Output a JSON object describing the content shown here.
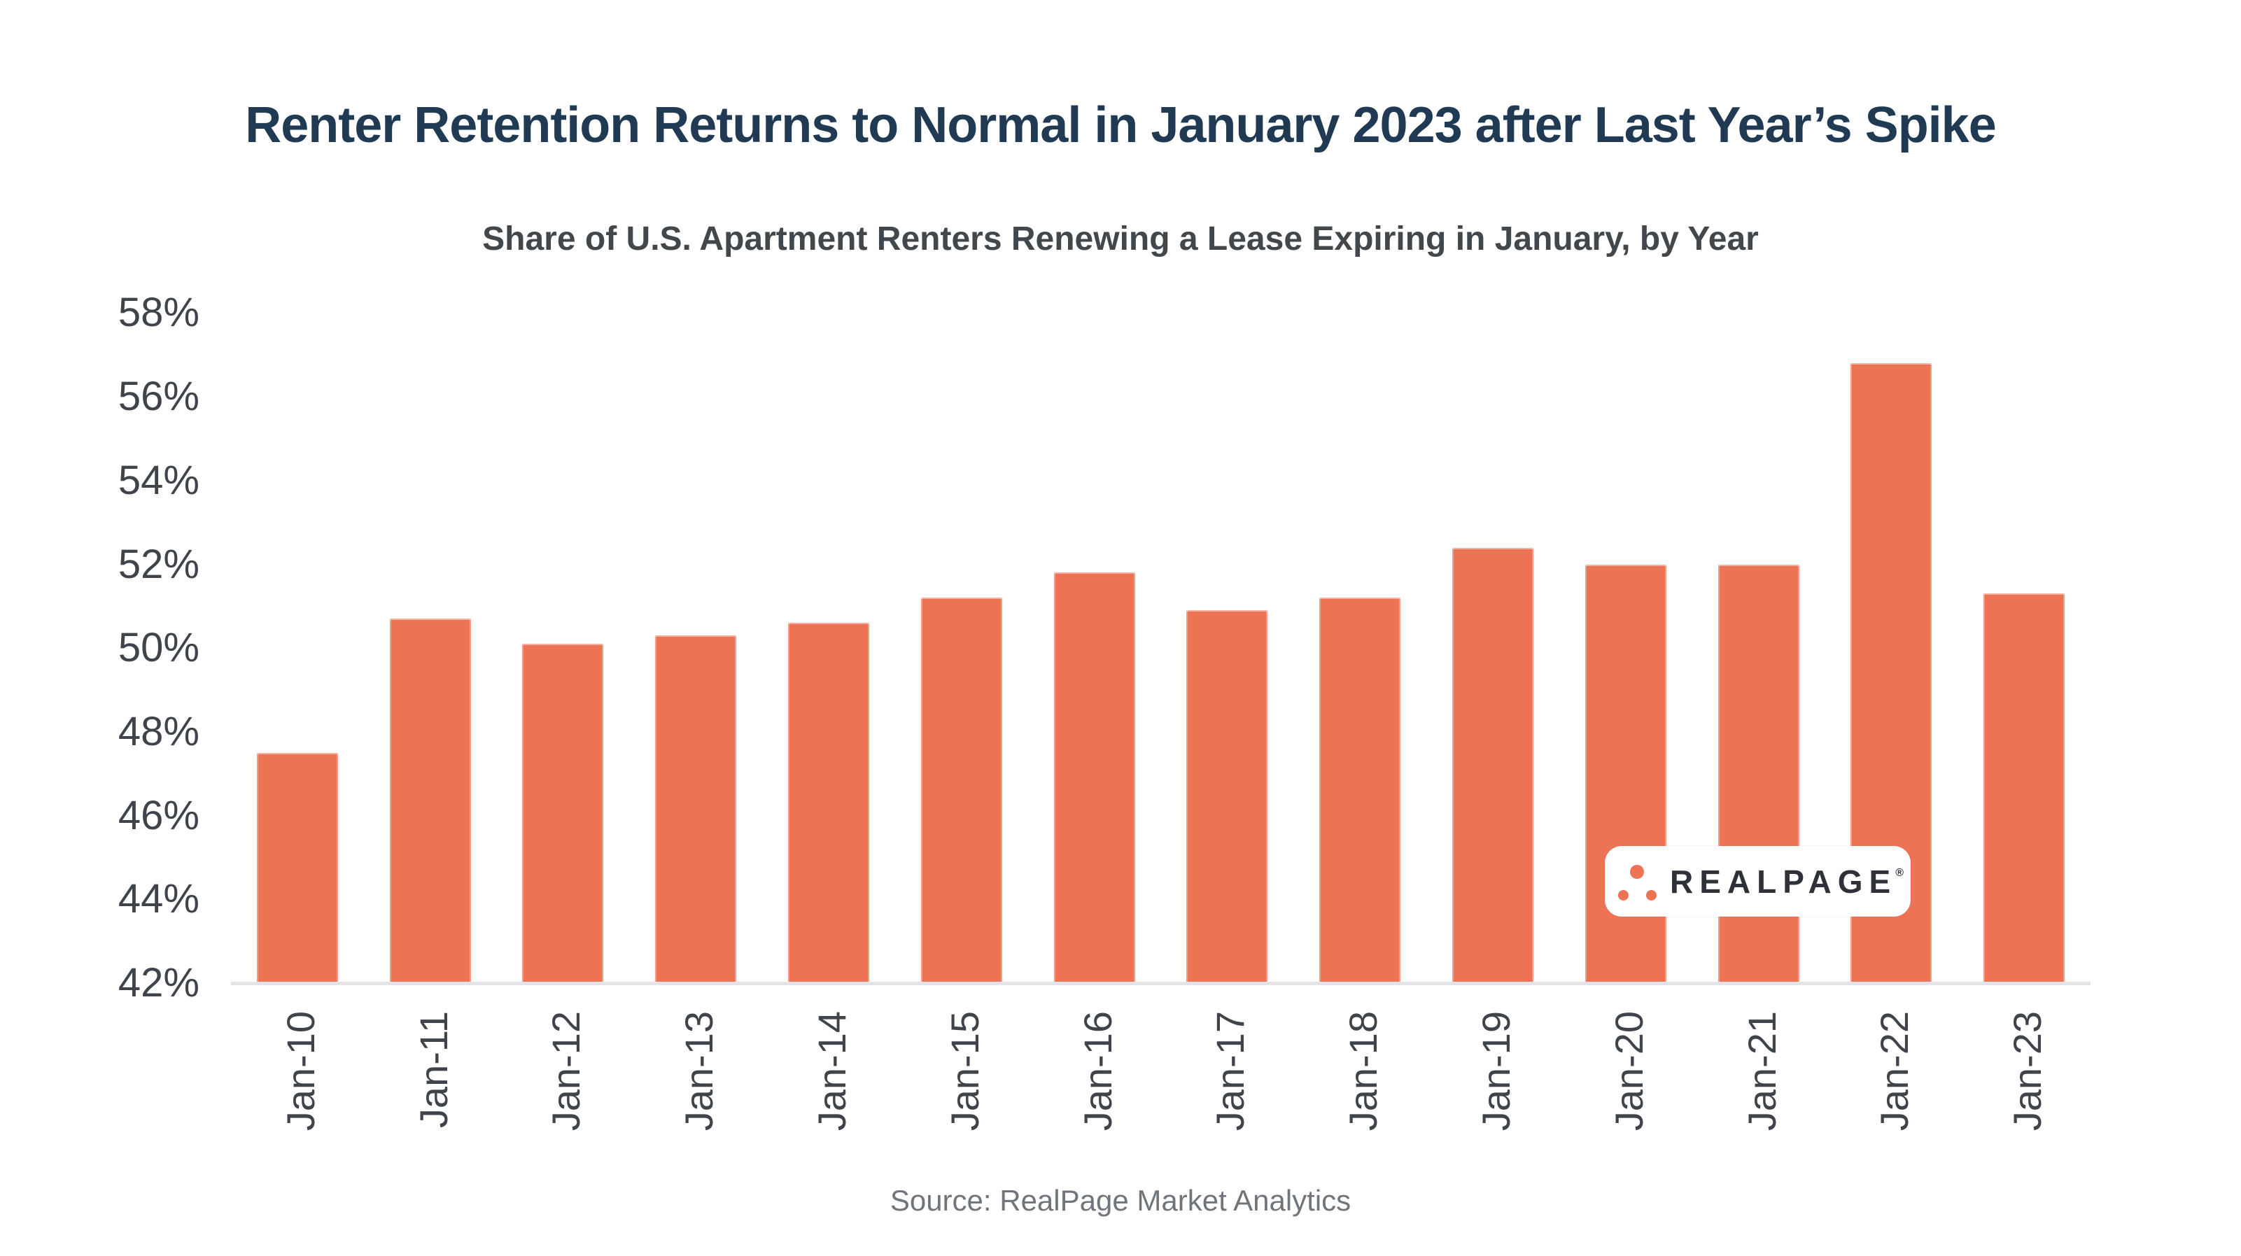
{
  "header": {
    "title": "Renter Retention Returns to Normal in January 2023 after Last Year’s Spike",
    "subtitle": "Share of U.S. Apartment Renters Renewing a Lease Expiring in January, by Year"
  },
  "chart_data": {
    "type": "bar",
    "categories": [
      "Jan-10",
      "Jan-11",
      "Jan-12",
      "Jan-13",
      "Jan-14",
      "Jan-15",
      "Jan-16",
      "Jan-17",
      "Jan-18",
      "Jan-19",
      "Jan-20",
      "Jan-21",
      "Jan-22",
      "Jan-23"
    ],
    "values": [
      47.5,
      50.7,
      50.1,
      50.3,
      50.6,
      51.2,
      51.8,
      50.9,
      51.2,
      52.4,
      52.0,
      52.0,
      56.8,
      51.3
    ],
    "title": "Renter Retention Returns to Normal in January 2023 after Last Year’s Spike",
    "xlabel": "",
    "ylabel": "",
    "ylim": [
      42,
      58
    ],
    "ytick_step": 2,
    "ytick_suffix": "%",
    "grid": false,
    "legend": false,
    "bar_color": "#EC7455"
  },
  "footer": {
    "source": "Source: RealPage Market Analytics"
  },
  "logo": {
    "text": "REALPAGE",
    "registered_mark": "®"
  },
  "colors": {
    "background": "#FFFFFF",
    "bar": "#EC7455",
    "title": "#1F3A52",
    "subtitle": "#42474C",
    "axis_label": "#3F444A",
    "axis_line": "#E4E3E7",
    "source_text": "#6F757A",
    "logo_background": "#FFFFFF",
    "logo_text": "#2E3138",
    "logo_dots": "#EC7455"
  }
}
